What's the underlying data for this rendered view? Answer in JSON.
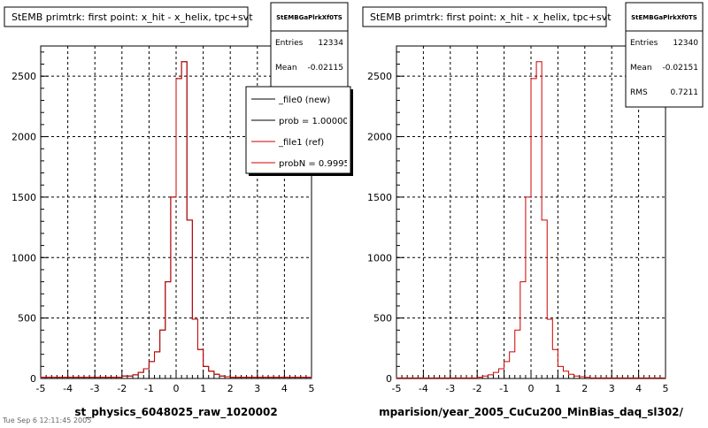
{
  "panels": [
    {
      "title": "StEMB primtrk: first point: x_hit - x_helix, tpc+svt",
      "xlabel": "st_physics_6048025_raw_1020002",
      "stats": {
        "name": "StEMBGaPlrkXf0TS",
        "rows": [
          {
            "label": "Entries",
            "value": "12334"
          },
          {
            "label": "Mean",
            "value": "-0.02115"
          }
        ]
      },
      "legend": [
        {
          "label": "_file0 (new)",
          "color": "#000000"
        },
        {
          "label": "prob = 1.000000",
          "color": "#000000"
        },
        {
          "label": "_file1 (ref)",
          "color": "#d00000"
        },
        {
          "label": "probN = 0.99953",
          "color": "#d00000"
        }
      ]
    },
    {
      "title": "StEMB primtrk: first point: x_hit - x_helix, tpc+svt",
      "xlabel": "mparision/year_2005_CuCu200_MinBias_daq_sl302/",
      "stats": {
        "name": "StEMBGaPlrkXf0TS",
        "rows": [
          {
            "label": "Entries",
            "value": "12340"
          },
          {
            "label": "Mean",
            "value": "-0.02151"
          },
          {
            "label": "RMS",
            "value": "0.7211"
          }
        ]
      },
      "legend": []
    }
  ],
  "footer_text": "Tue Sep  6 12:11:45 2005",
  "chart_data": [
    {
      "type": "bar",
      "title": "StEMB primtrk: first point: x_hit - x_helix, tpc+svt",
      "xlabel": "st_physics_6048025_raw_1020002",
      "ylabel": "",
      "xlim": [
        -5,
        5
      ],
      "ylim": [
        0,
        2750
      ],
      "xticks": [
        -5,
        -4,
        -3,
        -2,
        -1,
        0,
        1,
        2,
        3,
        4,
        5
      ],
      "yticks": [
        0,
        500,
        1000,
        1500,
        2000,
        2500
      ],
      "grid": true,
      "legend_position": "top-right",
      "bin_width": 0.2,
      "series": [
        {
          "name": "_file0 (new)",
          "color": "#000000",
          "values": [
            10,
            10,
            10,
            10,
            10,
            10,
            10,
            10,
            10,
            10,
            10,
            10,
            10,
            10,
            10,
            20,
            20,
            30,
            50,
            80,
            140,
            220,
            400,
            800,
            1500,
            2480,
            2620,
            1310,
            490,
            240,
            100,
            60,
            35,
            20,
            15,
            10,
            10,
            10,
            10,
            10,
            10,
            10,
            10,
            10,
            10,
            10,
            10,
            10,
            10,
            10
          ]
        },
        {
          "name": "_file1 (ref)",
          "color": "#d00000",
          "values": [
            10,
            10,
            10,
            10,
            10,
            10,
            10,
            10,
            10,
            10,
            10,
            10,
            10,
            10,
            10,
            20,
            20,
            30,
            50,
            80,
            140,
            220,
            400,
            800,
            1500,
            2480,
            2620,
            1310,
            490,
            240,
            100,
            60,
            35,
            20,
            15,
            10,
            10,
            10,
            10,
            10,
            10,
            10,
            10,
            10,
            10,
            10,
            10,
            10,
            10,
            10
          ]
        }
      ]
    },
    {
      "type": "bar",
      "title": "StEMB primtrk: first point: x_hit - x_helix, tpc+svt",
      "xlabel": "mparision/year_2005_CuCu200_MinBias_daq_sl302/",
      "ylabel": "",
      "xlim": [
        -5,
        5
      ],
      "ylim": [
        0,
        2750
      ],
      "xticks": [
        -5,
        -4,
        -3,
        -2,
        -1,
        0,
        1,
        2,
        3,
        4,
        5
      ],
      "yticks": [
        0,
        500,
        1000,
        1500,
        2000,
        2500
      ],
      "grid": true,
      "bin_width": 0.2,
      "series": [
        {
          "name": "",
          "color": "#d00000",
          "values": [
            5,
            5,
            5,
            5,
            5,
            5,
            5,
            5,
            5,
            5,
            5,
            5,
            5,
            5,
            5,
            10,
            20,
            30,
            50,
            80,
            140,
            220,
            400,
            800,
            1500,
            2480,
            2620,
            1310,
            490,
            240,
            100,
            60,
            35,
            20,
            15,
            10,
            5,
            5,
            5,
            5,
            5,
            5,
            5,
            5,
            5,
            5,
            5,
            5,
            5,
            5
          ]
        }
      ]
    }
  ]
}
